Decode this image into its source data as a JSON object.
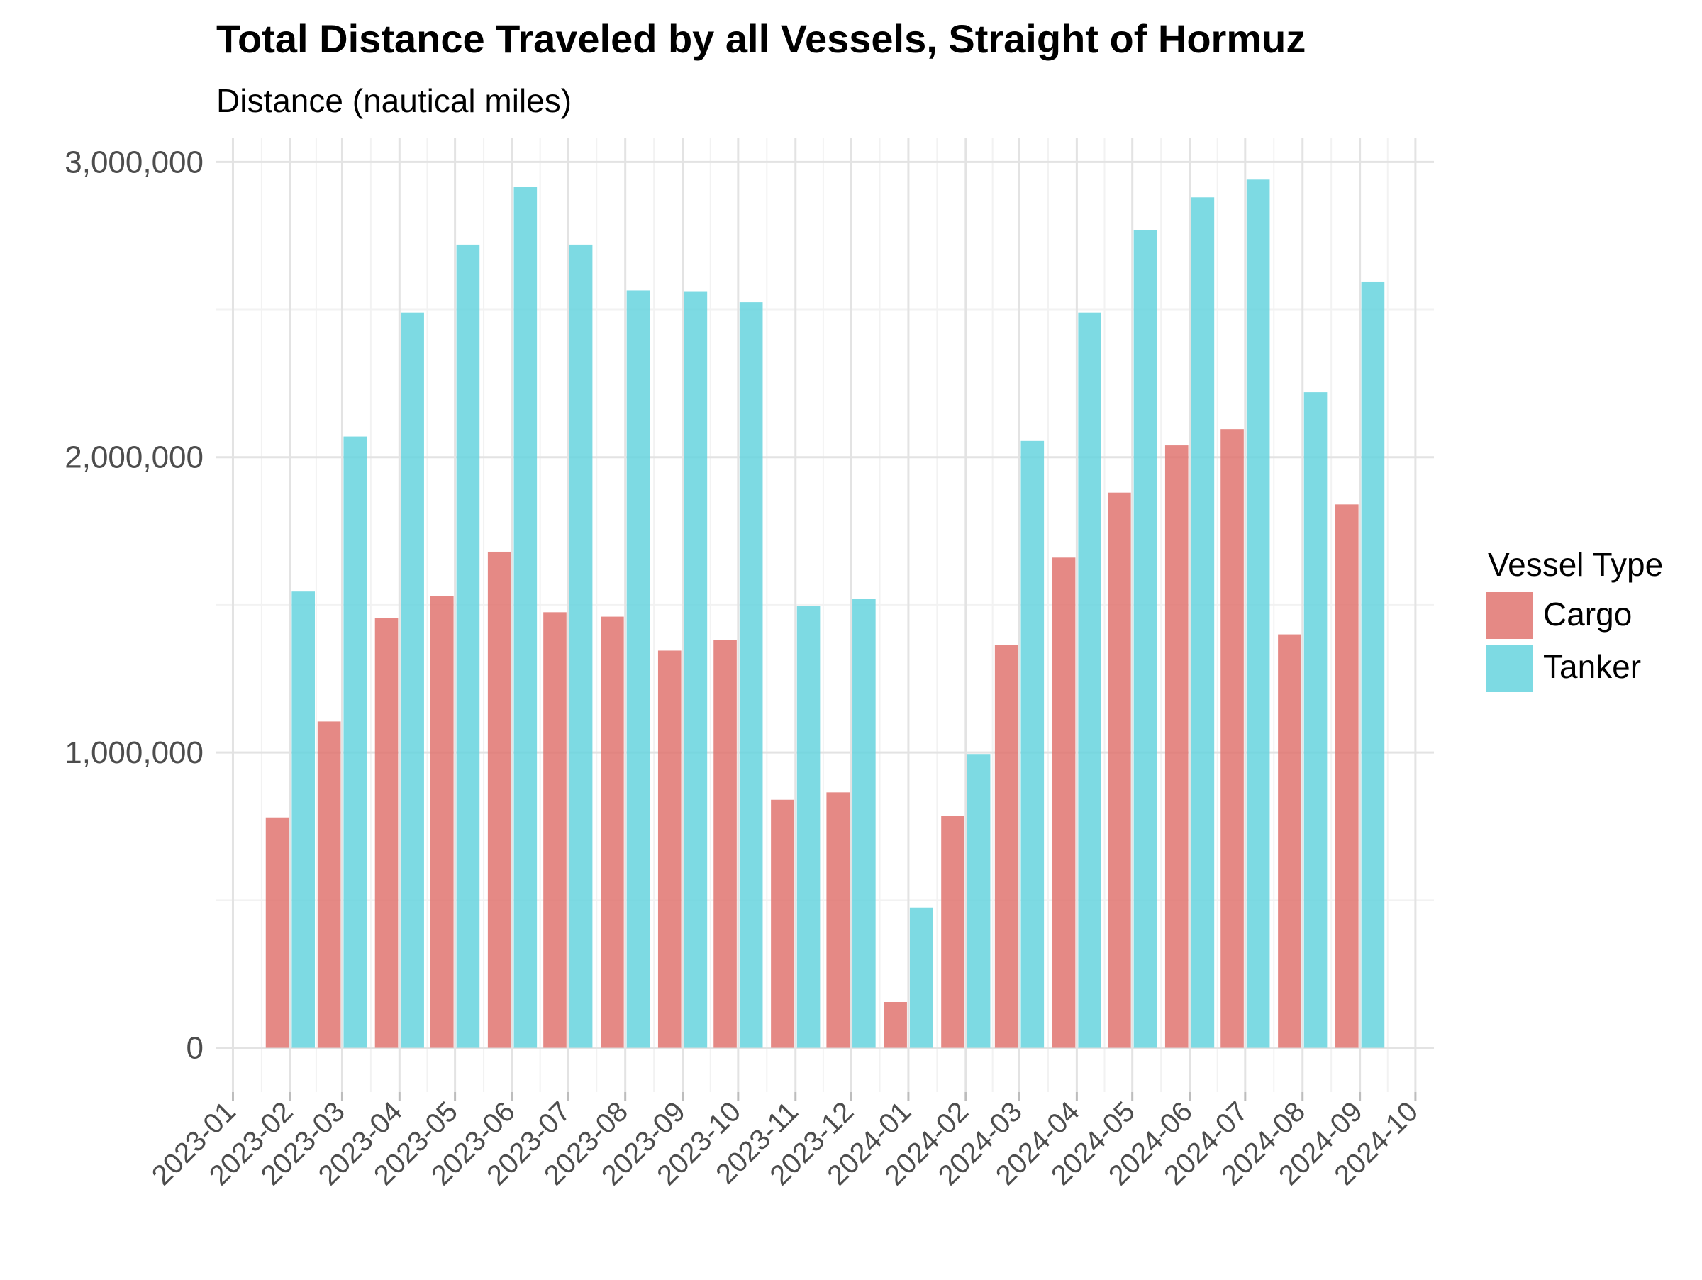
{
  "chart_data": {
    "type": "bar",
    "title": "Total Distance Traveled by all Vessels, Straight of Hormuz",
    "subtitle": "Distance (nautical miles)",
    "xlabel": "",
    "ylabel": "",
    "ylim": [
      -150000,
      3080000
    ],
    "yticks": [
      0,
      1000000,
      2000000,
      3000000
    ],
    "ytick_labels": [
      "0",
      "1,000,000",
      "2,000,000",
      "3,000,000"
    ],
    "x_tick_labels": [
      "2023-01",
      "2023-02",
      "2023-03",
      "2023-04",
      "2023-05",
      "2023-06",
      "2023-07",
      "2023-08",
      "2023-09",
      "2023-10",
      "2023-11",
      "2023-12",
      "2024-01",
      "2024-02",
      "2024-03",
      "2024-04",
      "2024-05",
      "2024-06",
      "2024-07",
      "2024-08",
      "2024-09",
      "2024-10"
    ],
    "x_tick_days": [
      0,
      31,
      59,
      90,
      120,
      151,
      181,
      212,
      243,
      273,
      304,
      334,
      365,
      396,
      425,
      456,
      486,
      517,
      547,
      578,
      609,
      639
    ],
    "categories": [
      "2023-02",
      "2023-03",
      "2023-04",
      "2023-05",
      "2023-06",
      "2023-07",
      "2023-08",
      "2023-09",
      "2023-10",
      "2023-11",
      "2023-12",
      "2024-01",
      "2024-02",
      "2024-03",
      "2024-04",
      "2024-05",
      "2024-06",
      "2024-07",
      "2024-08",
      "2024-09"
    ],
    "category_days": [
      31,
      59,
      90,
      120,
      151,
      181,
      212,
      243,
      273,
      304,
      334,
      365,
      396,
      425,
      456,
      486,
      517,
      547,
      578,
      609
    ],
    "series": [
      {
        "name": "Cargo",
        "color": "#e07470",
        "values": [
          780000,
          1105000,
          1455000,
          1530000,
          1680000,
          1475000,
          1460000,
          1345000,
          1380000,
          840000,
          865000,
          155000,
          785000,
          1365000,
          1660000,
          1880000,
          2040000,
          2095000,
          1400000,
          1840000
        ]
      },
      {
        "name": "Tanker",
        "color": "#66d4de",
        "values": [
          1545000,
          2070000,
          2490000,
          2720000,
          2915000,
          2720000,
          2565000,
          2560000,
          2525000,
          1495000,
          1520000,
          475000,
          995000,
          2055000,
          2490000,
          2770000,
          2880000,
          2940000,
          2220000,
          2595000
        ]
      }
    ],
    "grid": true,
    "legend": {
      "title": "Vessel Type",
      "placement": "right",
      "entries": [
        "Cargo",
        "Tanker"
      ]
    }
  }
}
